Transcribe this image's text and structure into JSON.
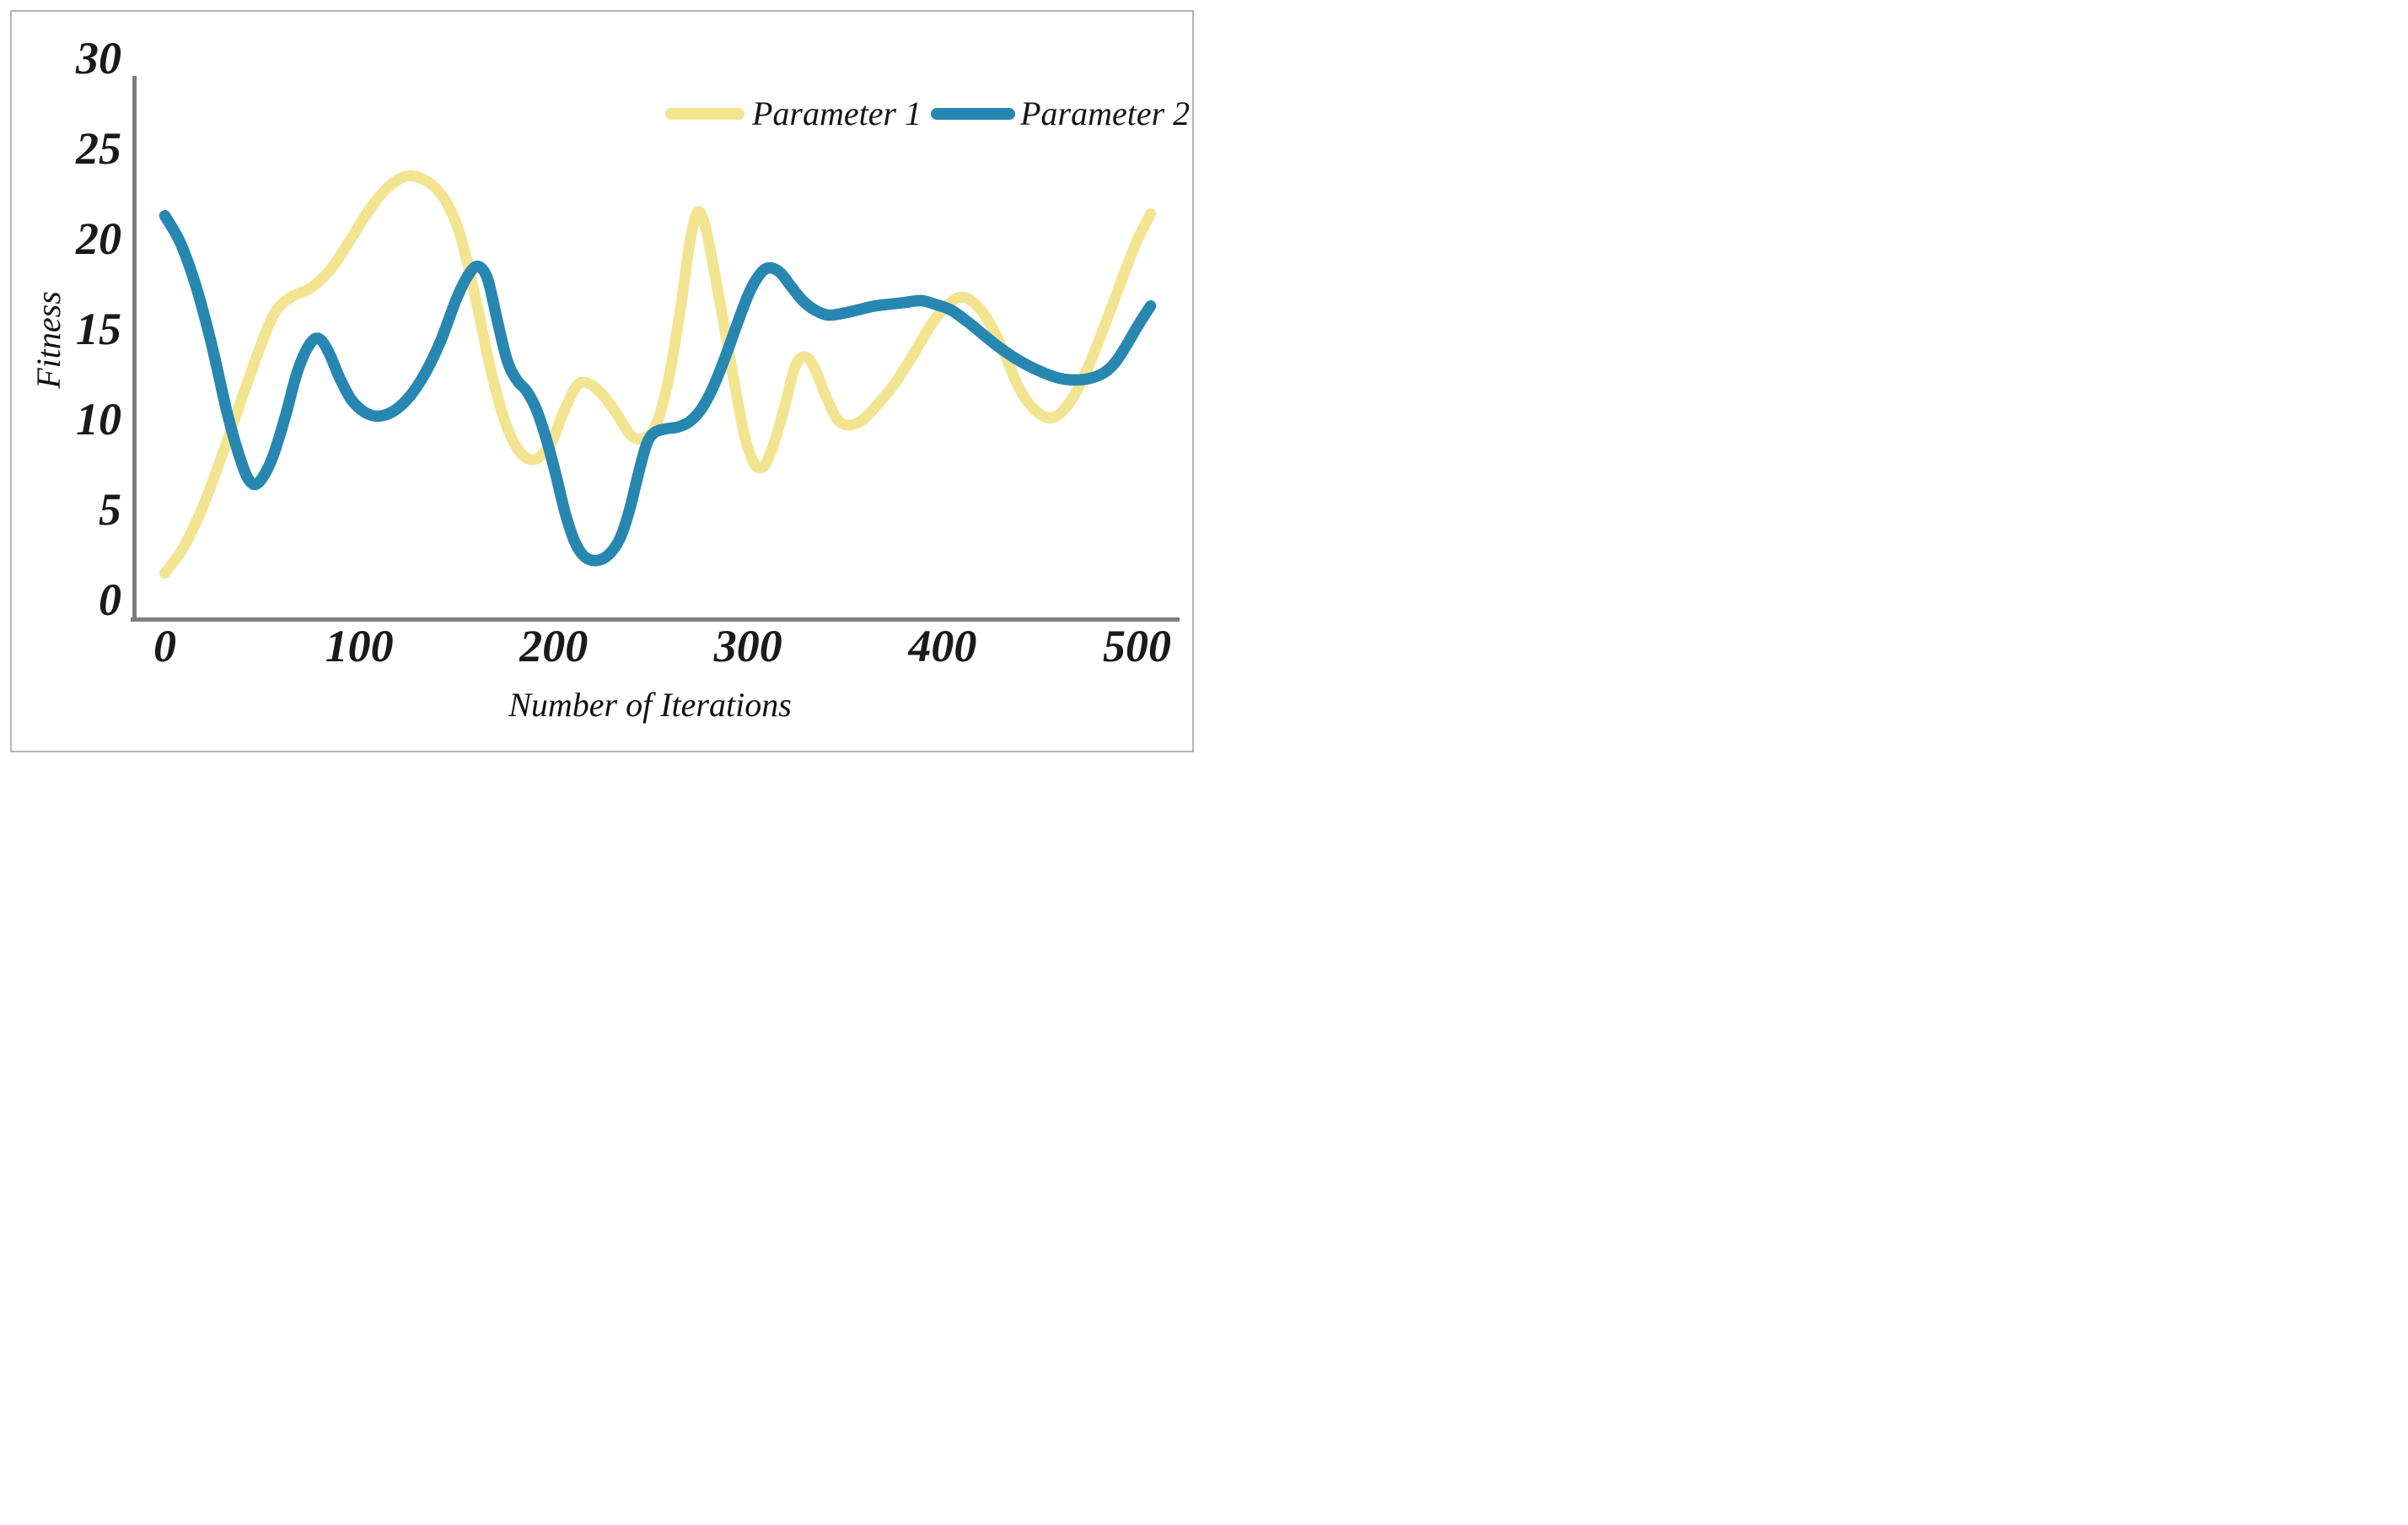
{
  "figure": {
    "background": "#ffffff",
    "border_color": "#b5b5b5",
    "text_color": "#1a1a1a"
  },
  "chart_data": {
    "type": "line",
    "title": "",
    "xlabel": "Number of Iterations",
    "ylabel": "Fitness",
    "xlim": [
      0,
      510
    ],
    "ylim": [
      0,
      30
    ],
    "x_ticks": [
      0,
      100,
      200,
      300,
      400,
      500
    ],
    "y_ticks": [
      30,
      25,
      20,
      15,
      10,
      5,
      0
    ],
    "grid": "off",
    "legend_position": "top-right",
    "axis_color": "#7e7e7e",
    "series": [
      {
        "name": "Parameter 1",
        "color": "#F3E492",
        "points": [
          [
            0,
            2.5
          ],
          [
            10,
            4
          ],
          [
            20,
            6.3
          ],
          [
            30,
            9.2
          ],
          [
            40,
            12.3
          ],
          [
            50,
            15.3
          ],
          [
            57,
            17
          ],
          [
            65,
            17.8
          ],
          [
            75,
            18.3
          ],
          [
            85,
            19.3
          ],
          [
            95,
            20.9
          ],
          [
            105,
            22.6
          ],
          [
            115,
            23.9
          ],
          [
            125,
            24.5
          ],
          [
            135,
            24.2
          ],
          [
            144,
            23.2
          ],
          [
            152,
            21.2
          ],
          [
            160,
            17.6
          ],
          [
            168,
            13.6
          ],
          [
            175,
            10.9
          ],
          [
            182,
            9.3
          ],
          [
            190,
            8.8
          ],
          [
            198,
            9.6
          ],
          [
            205,
            11.4
          ],
          [
            212,
            12.9
          ],
          [
            218,
            13
          ],
          [
            225,
            12.4
          ],
          [
            232,
            11.4
          ],
          [
            240,
            10.1
          ],
          [
            247,
            10
          ],
          [
            253,
            10.8
          ],
          [
            259,
            13.2
          ],
          [
            265,
            17
          ],
          [
            270,
            20.8
          ],
          [
            274,
            22.5
          ],
          [
            278,
            21.7
          ],
          [
            283,
            19
          ],
          [
            288,
            16
          ],
          [
            293,
            13
          ],
          [
            298,
            10.2
          ],
          [
            303,
            8.6
          ],
          [
            308,
            8.4
          ],
          [
            313,
            9.6
          ],
          [
            319,
            11.8
          ],
          [
            324,
            13.9
          ],
          [
            329,
            14.5
          ],
          [
            334,
            13.9
          ],
          [
            340,
            12.3
          ],
          [
            346,
            11
          ],
          [
            352,
            10.7
          ],
          [
            359,
            11
          ],
          [
            367,
            11.9
          ],
          [
            376,
            13.1
          ],
          [
            386,
            14.8
          ],
          [
            395,
            16.4
          ],
          [
            403,
            17.4
          ],
          [
            410,
            17.8
          ],
          [
            417,
            17.4
          ],
          [
            424,
            16.4
          ],
          [
            431,
            14.9
          ],
          [
            437,
            13.3
          ],
          [
            443,
            12.1
          ],
          [
            449,
            11.4
          ],
          [
            455,
            11.1
          ],
          [
            461,
            11.4
          ],
          [
            468,
            12.4
          ],
          [
            476,
            14.2
          ],
          [
            484,
            16.4
          ],
          [
            492,
            18.7
          ],
          [
            500,
            20.9
          ],
          [
            507,
            22.4
          ]
        ]
      },
      {
        "name": "Parameter 2",
        "color": "#2787B1",
        "points": [
          [
            0,
            22.3
          ],
          [
            8,
            20.8
          ],
          [
            16,
            18.4
          ],
          [
            24,
            15.2
          ],
          [
            32,
            11.4
          ],
          [
            38,
            9.1
          ],
          [
            43,
            7.7
          ],
          [
            48,
            7.5
          ],
          [
            55,
            8.8
          ],
          [
            62,
            11.2
          ],
          [
            68,
            13.6
          ],
          [
            74,
            15.1
          ],
          [
            79,
            15.5
          ],
          [
            84,
            14.8
          ],
          [
            90,
            13.3
          ],
          [
            96,
            12.1
          ],
          [
            103,
            11.4
          ],
          [
            110,
            11.2
          ],
          [
            118,
            11.5
          ],
          [
            126,
            12.3
          ],
          [
            134,
            13.6
          ],
          [
            142,
            15.4
          ],
          [
            150,
            17.7
          ],
          [
            156,
            19
          ],
          [
            161,
            19.5
          ],
          [
            166,
            18.8
          ],
          [
            171,
            16.5
          ],
          [
            176,
            14.3
          ],
          [
            181,
            13.2
          ],
          [
            186,
            12.6
          ],
          [
            191,
            11.6
          ],
          [
            196,
            10
          ],
          [
            201,
            8
          ],
          [
            206,
            5.8
          ],
          [
            211,
            4.2
          ],
          [
            216,
            3.4
          ],
          [
            222,
            3.2
          ],
          [
            228,
            3.5
          ],
          [
            234,
            4.4
          ],
          [
            239,
            6
          ],
          [
            244,
            8.2
          ],
          [
            248,
            9.7
          ],
          [
            252,
            10.3
          ],
          [
            258,
            10.5
          ],
          [
            264,
            10.6
          ],
          [
            270,
            10.9
          ],
          [
            276,
            11.6
          ],
          [
            282,
            12.8
          ],
          [
            288,
            14.4
          ],
          [
            294,
            16.2
          ],
          [
            300,
            17.9
          ],
          [
            305,
            18.9
          ],
          [
            310,
            19.4
          ],
          [
            316,
            19.2
          ],
          [
            322,
            18.4
          ],
          [
            328,
            17.6
          ],
          [
            334,
            17.1
          ],
          [
            341,
            16.8
          ],
          [
            349,
            16.9
          ],
          [
            357,
            17.1
          ],
          [
            365,
            17.3
          ],
          [
            373,
            17.4
          ],
          [
            381,
            17.5
          ],
          [
            389,
            17.6
          ],
          [
            396,
            17.4
          ],
          [
            404,
            17.1
          ],
          [
            412,
            16.5
          ],
          [
            420,
            15.8
          ],
          [
            428,
            15.1
          ],
          [
            436,
            14.5
          ],
          [
            444,
            14
          ],
          [
            452,
            13.6
          ],
          [
            460,
            13.3
          ],
          [
            468,
            13.2
          ],
          [
            476,
            13.3
          ],
          [
            483,
            13.6
          ],
          [
            489,
            14.2
          ],
          [
            495,
            15.2
          ],
          [
            501,
            16.3
          ],
          [
            507,
            17.3
          ]
        ]
      }
    ]
  }
}
